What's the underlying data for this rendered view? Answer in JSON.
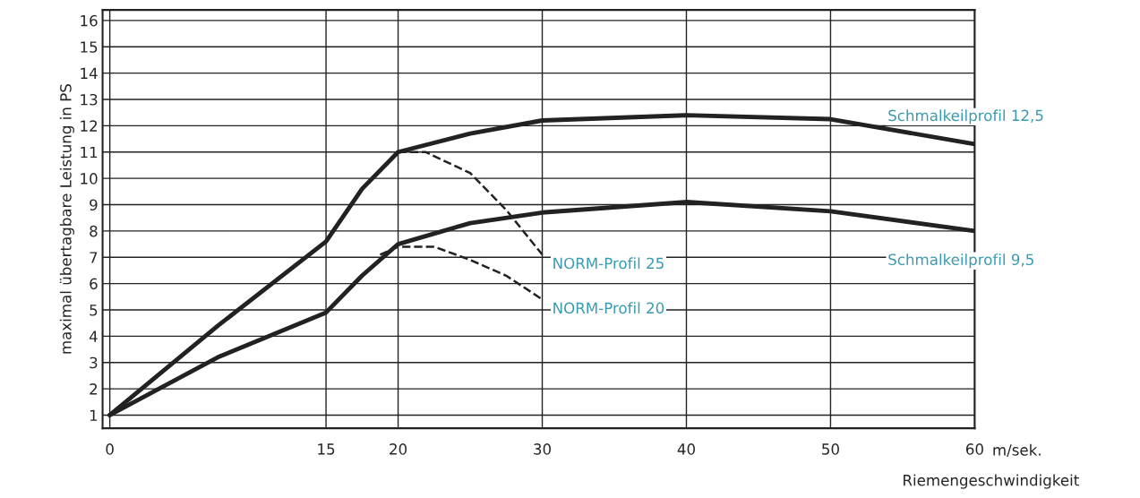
{
  "chart_data": {
    "type": "line",
    "xlabel": "Riemengeschwindigkeit",
    "ylabel": "maximal übertagbare Leistung in PS",
    "xlim": [
      -0.5,
      60
    ],
    "ylim": [
      0.5,
      16.4
    ],
    "xticks": [
      0,
      15,
      20,
      30,
      40,
      50,
      60
    ],
    "yticks": [
      1,
      2,
      3,
      4,
      5,
      6,
      7,
      8,
      9,
      10,
      11,
      12,
      13,
      14,
      15,
      16
    ],
    "grid": true,
    "marker": "none",
    "annotations": [
      "m/sek."
    ],
    "series": [
      {
        "name": "Schmalkeilprofil 12,5",
        "color": "#222222",
        "line_style": "solid",
        "x": [
          0,
          7.5,
          15,
          17.5,
          20,
          25,
          30,
          40,
          50,
          60
        ],
        "values": [
          1,
          4.4,
          7.6,
          9.6,
          11.0,
          11.7,
          12.2,
          12.4,
          12.25,
          11.3
        ]
      },
      {
        "name": "Schmalkeilprofil 9,5",
        "color": "#222222",
        "line_style": "solid",
        "x": [
          0,
          7.5,
          15,
          17.5,
          20,
          25,
          30,
          40,
          50,
          60
        ],
        "values": [
          1,
          3.2,
          4.9,
          6.3,
          7.5,
          8.3,
          8.7,
          9.1,
          8.75,
          8.0
        ]
      },
      {
        "name": "NORM-Profil 25",
        "color": "#222222",
        "line_style": "dashed",
        "x": [
          20,
          21.9,
          25,
          27.5,
          30
        ],
        "values": [
          11.0,
          11.0,
          10.2,
          8.8,
          7.1
        ]
      },
      {
        "name": "NORM-Profil 20",
        "color": "#222222",
        "line_style": "dashed",
        "x": [
          18.75,
          20,
          22.5,
          25,
          27.5,
          30
        ],
        "values": [
          7.1,
          7.4,
          7.4,
          6.9,
          6.3,
          5.4
        ]
      }
    ]
  }
}
